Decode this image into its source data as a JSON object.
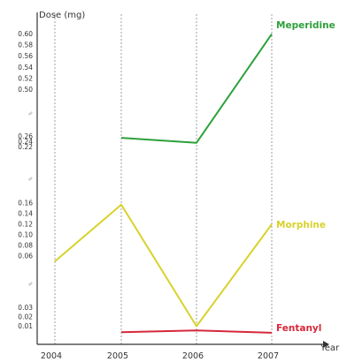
{
  "chart_data": {
    "type": "line",
    "title": "",
    "ylabel": "Dose (mg)",
    "xlabel": "Year",
    "categories": [
      "2004",
      "2005",
      "2006",
      "2007"
    ],
    "y_segments": [
      {
        "name": "low",
        "ylim": [
          0.0,
          0.04
        ],
        "ticks": [
          "0.01",
          "0.02",
          "0.03"
        ]
      },
      {
        "name": "mid",
        "ylim": [
          0.04,
          0.18
        ],
        "ticks": [
          "0.06",
          "0.08",
          "0.10",
          "0.12",
          "0.14",
          "0.16"
        ]
      },
      {
        "name": "high",
        "ylim": [
          0.18,
          0.3
        ],
        "ticks": [
          "0.22",
          "0.24",
          "0.26"
        ]
      },
      {
        "name": "top",
        "ylim": [
          0.48,
          0.62
        ],
        "ticks": [
          "0.50",
          "0.52",
          "0.54",
          "0.56",
          "0.58",
          "0.60"
        ]
      }
    ],
    "axis_break_symbol": "≈",
    "grid": "vertical dashed",
    "series": [
      {
        "name": "Meperidine",
        "color": "#2ea03a",
        "values": [
          null,
          0.255,
          0.236,
          0.6
        ]
      },
      {
        "name": "Morphine",
        "color": "#d8d22c",
        "values": [
          0.05,
          0.157,
          0.01,
          0.12
        ]
      },
      {
        "name": "Fentanyl",
        "color": "#d6283a",
        "values": [
          null,
          0.0035,
          0.0055,
          0.003
        ]
      }
    ]
  }
}
